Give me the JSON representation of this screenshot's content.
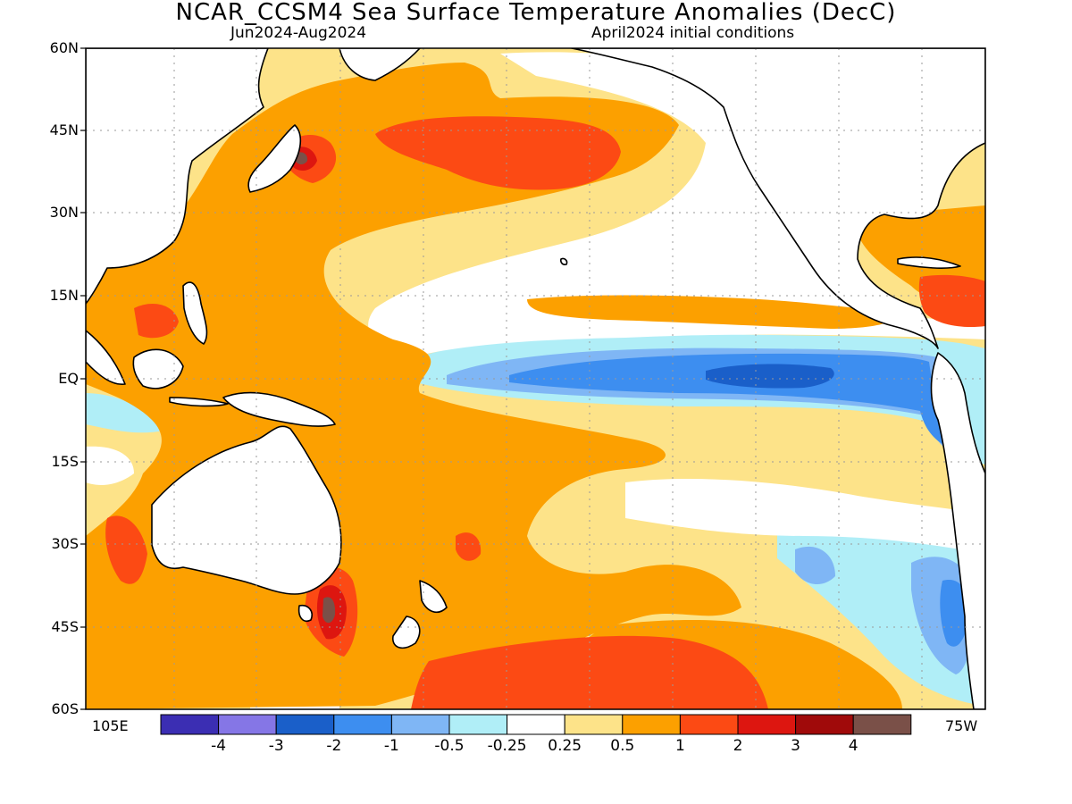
{
  "title": "NCAR_CCSM4 Sea Surface Temperature Anomalies (DecC)",
  "subtitle_left": "Jun2024-Aug2024",
  "subtitle_right": "April2024 initial conditions",
  "lat_labels": [
    "60N",
    "45N",
    "30N",
    "15N",
    "EQ",
    "15S",
    "30S",
    "45S",
    "60S"
  ],
  "lon_labels": {
    "left": "105E",
    "right": "75W"
  },
  "colorbar": {
    "colors": [
      "#3b2eb3",
      "#8576e6",
      "#1a5fc9",
      "#3d8ef0",
      "#7fb6f5",
      "#b0eef7",
      "#ffffff",
      "#fde389",
      "#fca000",
      "#fc4a14",
      "#dd1610",
      "#a00a0a",
      "#7a5048"
    ],
    "labels": [
      "-4",
      "-3",
      "-2",
      "-1",
      "-0.5",
      "-0.25",
      "0.25",
      "0.5",
      "1",
      "2",
      "3",
      "4"
    ]
  },
  "colors": {
    "land": "#ffffff",
    "coast": "#000000",
    "grid": "#9a9a9a",
    "ocean_base": "#fde389"
  }
}
